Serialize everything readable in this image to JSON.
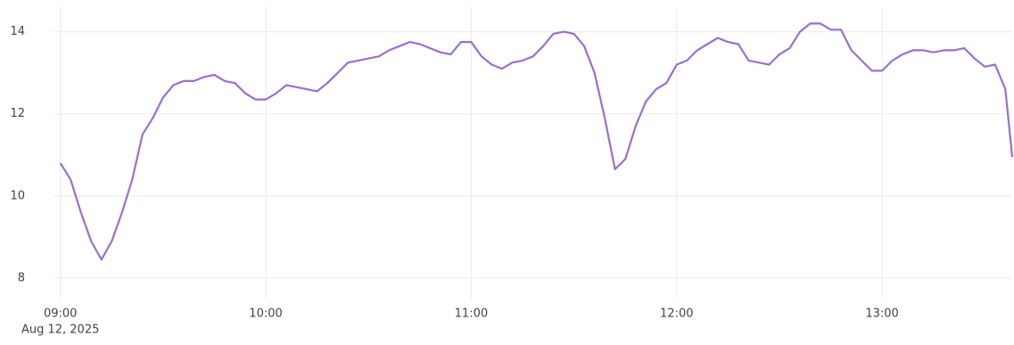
{
  "chart_data": {
    "type": "line",
    "x": [
      "2025-08-12 09:00",
      "2025-08-12 09:03",
      "2025-08-12 09:06",
      "2025-08-12 09:09",
      "2025-08-12 09:12",
      "2025-08-12 09:15",
      "2025-08-12 09:18",
      "2025-08-12 09:21",
      "2025-08-12 09:24",
      "2025-08-12 09:27",
      "2025-08-12 09:30",
      "2025-08-12 09:33",
      "2025-08-12 09:36",
      "2025-08-12 09:39",
      "2025-08-12 09:42",
      "2025-08-12 09:45",
      "2025-08-12 09:48",
      "2025-08-12 09:51",
      "2025-08-12 09:54",
      "2025-08-12 09:57",
      "2025-08-12 10:00",
      "2025-08-12 10:03",
      "2025-08-12 10:06",
      "2025-08-12 10:09",
      "2025-08-12 10:12",
      "2025-08-12 10:15",
      "2025-08-12 10:18",
      "2025-08-12 10:21",
      "2025-08-12 10:24",
      "2025-08-12 10:27",
      "2025-08-12 10:30",
      "2025-08-12 10:33",
      "2025-08-12 10:36",
      "2025-08-12 10:39",
      "2025-08-12 10:42",
      "2025-08-12 10:45",
      "2025-08-12 10:48",
      "2025-08-12 10:51",
      "2025-08-12 10:54",
      "2025-08-12 10:57",
      "2025-08-12 11:00",
      "2025-08-12 11:03",
      "2025-08-12 11:06",
      "2025-08-12 11:09",
      "2025-08-12 11:12",
      "2025-08-12 11:15",
      "2025-08-12 11:18",
      "2025-08-12 11:21",
      "2025-08-12 11:24",
      "2025-08-12 11:27",
      "2025-08-12 11:30",
      "2025-08-12 11:33",
      "2025-08-12 11:36",
      "2025-08-12 11:39",
      "2025-08-12 11:42",
      "2025-08-12 11:45",
      "2025-08-12 11:48",
      "2025-08-12 11:51",
      "2025-08-12 11:54",
      "2025-08-12 11:57",
      "2025-08-12 12:00",
      "2025-08-12 12:03",
      "2025-08-12 12:06",
      "2025-08-12 12:09",
      "2025-08-12 12:12",
      "2025-08-12 12:15",
      "2025-08-12 12:18",
      "2025-08-12 12:21",
      "2025-08-12 12:24",
      "2025-08-12 12:27",
      "2025-08-12 12:30",
      "2025-08-12 12:33",
      "2025-08-12 12:36",
      "2025-08-12 12:39",
      "2025-08-12 12:42",
      "2025-08-12 12:45",
      "2025-08-12 12:48",
      "2025-08-12 12:51",
      "2025-08-12 12:54",
      "2025-08-12 12:57",
      "2025-08-12 13:00",
      "2025-08-12 13:03",
      "2025-08-12 13:06",
      "2025-08-12 13:09",
      "2025-08-12 13:12",
      "2025-08-12 13:15",
      "2025-08-12 13:18",
      "2025-08-12 13:21",
      "2025-08-12 13:24",
      "2025-08-12 13:27",
      "2025-08-12 13:30",
      "2025-08-12 13:33",
      "2025-08-12 13:36",
      "2025-08-12 13:38"
    ],
    "values": [
      10.8,
      10.4,
      9.6,
      8.9,
      8.45,
      8.9,
      9.6,
      10.4,
      11.5,
      11.9,
      12.4,
      12.7,
      12.8,
      12.8,
      12.9,
      12.95,
      12.8,
      12.75,
      12.5,
      12.35,
      12.35,
      12.5,
      12.7,
      12.65,
      12.6,
      12.55,
      12.75,
      13.0,
      13.25,
      13.3,
      13.35,
      13.4,
      13.55,
      13.65,
      13.75,
      13.7,
      13.6,
      13.5,
      13.45,
      13.75,
      13.75,
      13.4,
      13.2,
      13.1,
      13.25,
      13.3,
      13.4,
      13.65,
      13.95,
      14.0,
      13.95,
      13.65,
      13.0,
      11.9,
      10.65,
      10.9,
      11.7,
      12.3,
      12.6,
      12.75,
      13.2,
      13.3,
      13.55,
      13.7,
      13.85,
      13.75,
      13.7,
      13.3,
      13.25,
      13.2,
      13.45,
      13.6,
      14.0,
      14.2,
      14.2,
      14.05,
      14.05,
      13.55,
      13.3,
      13.05,
      13.05,
      13.3,
      13.45,
      13.55,
      13.55,
      13.5,
      13.55,
      13.55,
      13.6,
      13.35,
      13.15,
      13.2,
      12.6,
      10.95
    ],
    "color": "#9b6fcf",
    "xlim": [
      "2025-08-12 08:58",
      "2025-08-12 13:38"
    ],
    "xticks": [
      {
        "value": "2025-08-12 09:00",
        "label": "09:00"
      },
      {
        "value": "2025-08-12 10:00",
        "label": "10:00"
      },
      {
        "value": "2025-08-12 11:00",
        "label": "11:00"
      },
      {
        "value": "2025-08-12 12:00",
        "label": "12:00"
      },
      {
        "value": "2025-08-12 13:00",
        "label": "13:00"
      }
    ],
    "x_date_label": "Aug 12, 2025",
    "ylim": [
      7.5,
      14.6
    ],
    "yticks": [
      8,
      10,
      12,
      14
    ],
    "grid": true
  }
}
